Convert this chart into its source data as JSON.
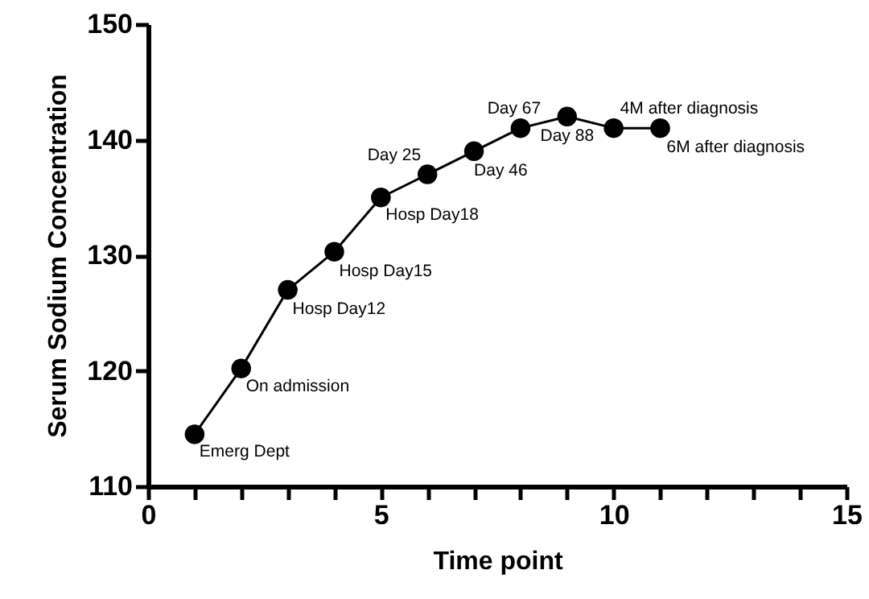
{
  "chart_data": {
    "type": "line",
    "xlabel": "Time point",
    "ylabel": "Serum Sodium Concentration",
    "x": [
      1,
      2,
      3,
      4,
      5,
      6,
      7,
      8,
      9,
      10,
      11
    ],
    "series": [
      {
        "color": "#000000",
        "values": [
          114.5,
          120.2,
          127,
          130.3,
          135,
          137,
          139,
          141,
          142,
          141,
          141
        ]
      }
    ],
    "xlim": [
      0,
      15
    ],
    "xticks": [
      0,
      {
        "value": 1,
        "label": null
      },
      {
        "value": 2,
        "label": null
      },
      {
        "value": 3,
        "label": null
      },
      {
        "value": 4,
        "label": null
      },
      5,
      {
        "value": 6,
        "label": null
      },
      {
        "value": 7,
        "label": null
      },
      {
        "value": 8,
        "label": null
      },
      {
        "value": 9,
        "label": null
      },
      10,
      {
        "value": 11,
        "label": null
      },
      {
        "value": 12,
        "label": null
      },
      {
        "value": 13,
        "label": null
      },
      {
        "value": 14,
        "label": null
      },
      15
    ],
    "ylim": [
      110,
      150
    ],
    "yticks": [
      110,
      120,
      130,
      140,
      150
    ],
    "marker": "circle",
    "line_style": "solid",
    "grid": false,
    "annotations": [
      {
        "text": "Emerg Dept",
        "x": 1,
        "y": 114.5
      },
      {
        "text": "On admission",
        "x": 2,
        "y": 120.2
      },
      {
        "text": "Hosp Day12",
        "x": 3,
        "y": 127
      },
      {
        "text": "Hosp Day15",
        "x": 4,
        "y": 130.3
      },
      {
        "text": "Hosp Day18",
        "x": 5,
        "y": 135
      },
      {
        "text": "Day 25",
        "x": 6,
        "y": 137
      },
      {
        "text": "Day 46",
        "x": 7,
        "y": 139
      },
      {
        "text": "Day 67",
        "x": 8,
        "y": 141
      },
      {
        "text": "Day 88",
        "x": 9,
        "y": 142
      },
      {
        "text": "4M after diagnosis",
        "x": 10,
        "y": 141
      },
      {
        "text": "6M after diagnosis",
        "x": 11,
        "y": 141
      }
    ]
  }
}
